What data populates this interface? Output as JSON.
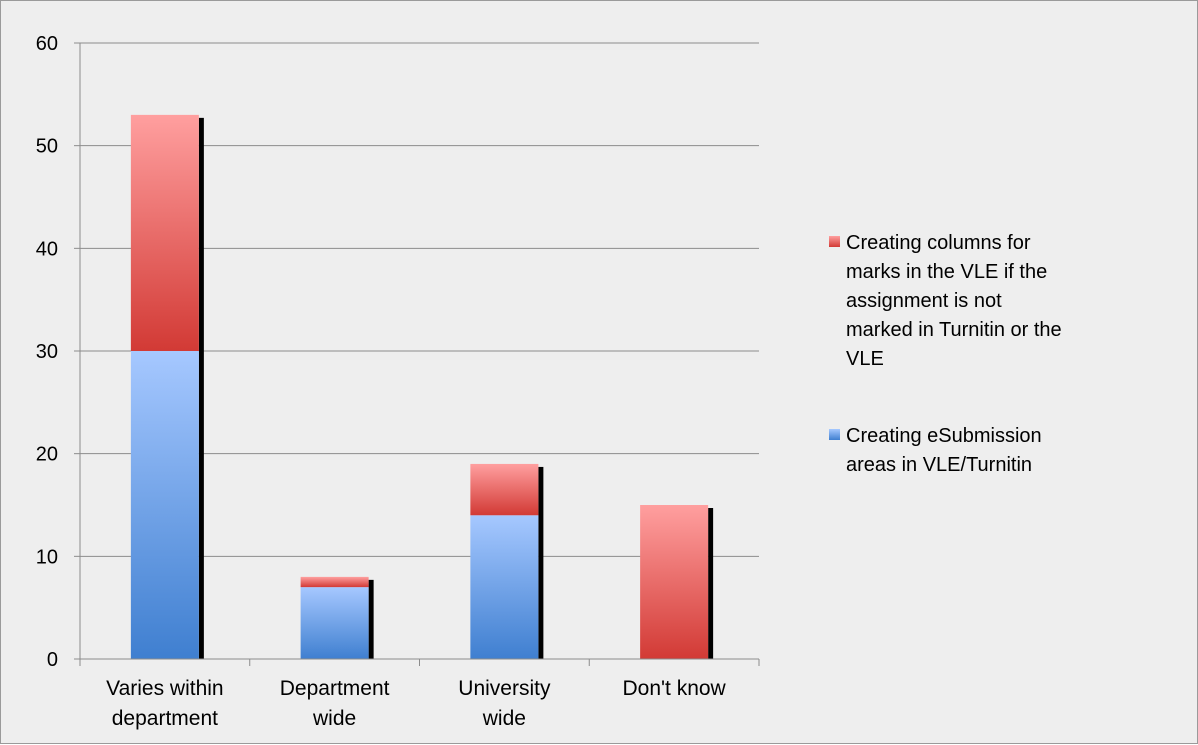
{
  "chart_data": {
    "type": "bar",
    "stacked": true,
    "categories": [
      [
        "Varies within",
        "department"
      ],
      [
        "Department",
        "wide"
      ],
      [
        "University",
        "wide"
      ],
      [
        "Don't know"
      ]
    ],
    "series": [
      {
        "name": "Creating eSubmission areas in VLE/Turnitin",
        "legend_lines": [
          "Creating eSubmission",
          "areas in VLE/Turnitin"
        ],
        "values": [
          30,
          7,
          14,
          0
        ],
        "color_top": "#a6c8ff",
        "color_bottom": "#3f7fd0"
      },
      {
        "name": "Creating columns for marks in the VLE if the assignment is not marked in Turnitin or the VLE",
        "legend_lines": [
          "Creating columns for",
          "marks in the VLE if the",
          "assignment is not",
          "marked in Turnitin or the",
          "VLE"
        ],
        "values": [
          23,
          1,
          5,
          15
        ],
        "color_top": "#ff9f9f",
        "color_bottom": "#d23a35"
      }
    ],
    "ylim": [
      0,
      60
    ],
    "yticks": [
      0,
      10,
      20,
      30,
      40,
      50,
      60
    ],
    "grid": true,
    "legend": "right",
    "colors": {
      "background": "#eeeeee",
      "gridline": "#8c8c8c",
      "axis": "#8c8c8c",
      "shadow": "#000000"
    }
  }
}
